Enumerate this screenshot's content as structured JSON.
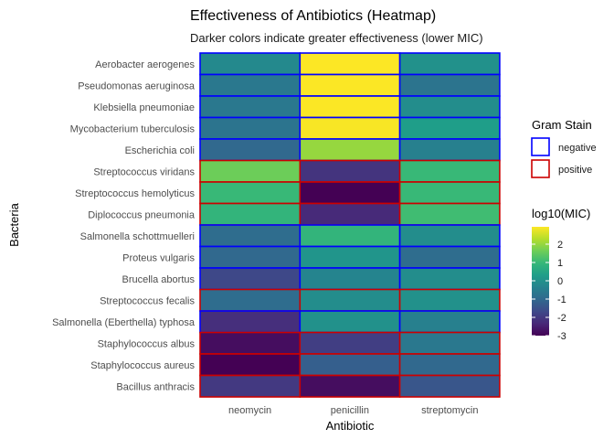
{
  "chart_data": {
    "type": "heatmap",
    "title": "Effectiveness of Antibiotics (Heatmap)",
    "subtitle": "Darker colors indicate greater effectiveness (lower MIC)",
    "xlabel": "Antibiotic",
    "ylabel": "Bacteria",
    "x_categories": [
      "neomycin",
      "penicillin",
      "streptomycin"
    ],
    "y_categories": [
      "Aerobacter aerogenes",
      "Pseudomonas aeruginosa",
      "Klebsiella pneumoniae",
      "Mycobacterium tuberculosis",
      "Escherichia coli",
      "Streptococcus viridans",
      "Streptococcus hemolyticus",
      "Diplococcus pneumonia",
      "Salmonella schottmuelleri",
      "Proteus vulgaris",
      "Brucella abortus",
      "Streptococcus fecalis",
      "Salmonella (Eberthella) typhosa",
      "Staphylococcus albus",
      "Staphylococcus aureus",
      "Bacillus anthracis"
    ],
    "values": [
      [
        -0.2,
        2.94,
        0.0
      ],
      [
        -0.6,
        2.93,
        -0.7
      ],
      [
        -0.6,
        2.93,
        -0.1
      ],
      [
        -0.7,
        2.9,
        0.3
      ],
      [
        -1.0,
        2.0,
        -0.4
      ],
      [
        1.6,
        -2.1,
        1.0
      ],
      [
        1.0,
        -3.0,
        1.0
      ],
      [
        0.9,
        -2.3,
        1.1
      ],
      [
        -0.9,
        0.9,
        -0.1
      ],
      [
        -1.0,
        0.1,
        -0.9
      ],
      [
        -1.7,
        -0.3,
        -0.1
      ],
      [
        -0.9,
        -0.1,
        0.0
      ],
      [
        -2.2,
        0.0,
        -0.4
      ],
      [
        -2.8,
        -1.9,
        -0.6
      ],
      [
        -3.0,
        -1.2,
        -1.0
      ],
      [
        -2.0,
        -2.8,
        -1.4
      ]
    ],
    "gram_stain": [
      "negative",
      "negative",
      "negative",
      "negative",
      "negative",
      "positive",
      "positive",
      "positive",
      "negative",
      "negative",
      "negative",
      "positive",
      "negative",
      "positive",
      "positive",
      "positive"
    ],
    "legend_gram": {
      "title": "Gram Stain",
      "entries": [
        {
          "label": "negative",
          "color": "#0000ff"
        },
        {
          "label": "positive",
          "color": "#cc0000"
        }
      ]
    },
    "legend_color": {
      "title": "log10(MIC)",
      "ticks": [
        2,
        1,
        0,
        -1,
        -2,
        -3
      ],
      "tick_labels": [
        "2",
        "1",
        "0",
        "-1",
        "-2",
        "-3"
      ],
      "range": [
        -3.0,
        2.95
      ],
      "palette": "viridis"
    },
    "grid": false,
    "legend_position": "right"
  }
}
